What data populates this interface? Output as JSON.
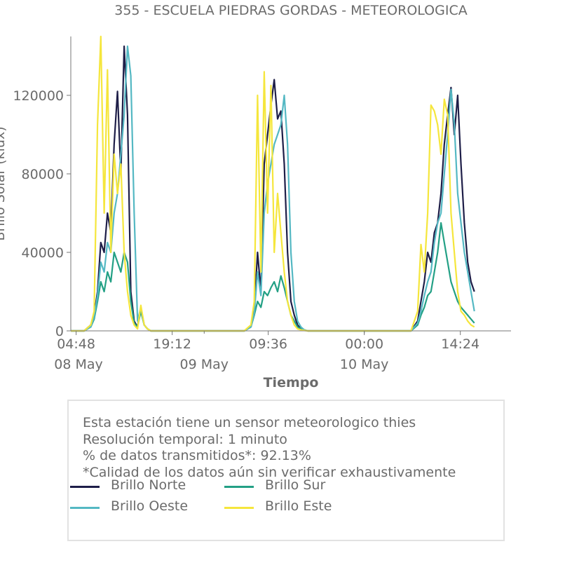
{
  "chart_data": {
    "type": "line",
    "title": "355 - ESCUELA PIEDRAS GORDAS - METEOROLOGICA",
    "xlabel": "Tiempo",
    "ylabel": "Brillo Solar (klux)",
    "ylim": [
      0,
      150000
    ],
    "yticks": [
      0,
      40000,
      80000,
      120000
    ],
    "ytick_labels": [
      "0",
      "40000",
      "80000",
      "120000"
    ],
    "x_range": [
      "2024-05-08 04:00",
      "2024-05-10 22:00"
    ],
    "xticks": [
      {
        "t": "2024-05-08 04:48",
        "label": "04:48",
        "sublabel": "08 May"
      },
      {
        "t": "2024-05-08 19:12",
        "label": "19:12",
        "sublabel": ""
      },
      {
        "t": "2024-05-09 09:36",
        "label": "09:36",
        "sublabel": "09 May"
      },
      {
        "t": "2024-05-10 00:00",
        "label": "00:00",
        "sublabel": "10 May"
      },
      {
        "t": "2024-05-10 14:24",
        "label": "14:24",
        "sublabel": ""
      }
    ],
    "date_labels": [
      {
        "t": "2024-05-08 00:00",
        "label": "08 May"
      },
      {
        "t": "2024-05-09 00:00",
        "label": "09 May"
      },
      {
        "t": "2024-05-10 00:00",
        "label": "10 May"
      }
    ],
    "grid": false,
    "legend_position": "bottom",
    "series": [
      {
        "name": "Brillo Norte",
        "color": "#1e1e48",
        "x": [
          "2024-05-08 04:00",
          "2024-05-08 06:00",
          "2024-05-08 07:00",
          "2024-05-08 07:30",
          "2024-05-08 08:00",
          "2024-05-08 08:30",
          "2024-05-08 09:00",
          "2024-05-08 09:30",
          "2024-05-08 10:00",
          "2024-05-08 10:30",
          "2024-05-08 11:00",
          "2024-05-08 11:30",
          "2024-05-08 12:00",
          "2024-05-08 12:30",
          "2024-05-08 13:00",
          "2024-05-08 13:30",
          "2024-05-08 14:00",
          "2024-05-08 14:30",
          "2024-05-08 15:00",
          "2024-05-08 15:30",
          "2024-05-08 16:00",
          "2024-05-08 17:00",
          "2024-05-08 18:00",
          "2024-05-09 06:00",
          "2024-05-09 07:00",
          "2024-05-09 07:30",
          "2024-05-09 08:00",
          "2024-05-09 08:30",
          "2024-05-09 09:00",
          "2024-05-09 09:30",
          "2024-05-09 10:00",
          "2024-05-09 10:30",
          "2024-05-09 11:00",
          "2024-05-09 11:30",
          "2024-05-09 12:00",
          "2024-05-09 12:30",
          "2024-05-09 13:00",
          "2024-05-09 13:30",
          "2024-05-09 14:00",
          "2024-05-09 14:30",
          "2024-05-09 15:00",
          "2024-05-09 15:30",
          "2024-05-09 16:00",
          "2024-05-09 17:00",
          "2024-05-09 18:00",
          "2024-05-10 07:00",
          "2024-05-10 08:00",
          "2024-05-10 08:30",
          "2024-05-10 09:00",
          "2024-05-10 09:30",
          "2024-05-10 10:00",
          "2024-05-10 10:30",
          "2024-05-10 11:00",
          "2024-05-10 11:30",
          "2024-05-10 12:00",
          "2024-05-10 12:30",
          "2024-05-10 13:00",
          "2024-05-10 13:30",
          "2024-05-10 14:00",
          "2024-05-10 14:30",
          "2024-05-10 15:00",
          "2024-05-10 15:30",
          "2024-05-10 16:00",
          "2024-05-10 16:30"
        ],
        "y": [
          0,
          0,
          3000,
          8000,
          20000,
          45000,
          40000,
          60000,
          50000,
          95000,
          122000,
          80000,
          145000,
          110000,
          20000,
          5000,
          2000,
          12000,
          3000,
          1000,
          0,
          0,
          0,
          0,
          2000,
          10000,
          40000,
          20000,
          85000,
          100000,
          115000,
          128000,
          108000,
          112000,
          85000,
          40000,
          15000,
          8000,
          3000,
          1000,
          500,
          0,
          0,
          0,
          0,
          0,
          5000,
          15000,
          25000,
          40000,
          35000,
          50000,
          55000,
          70000,
          95000,
          110000,
          124000,
          100000,
          120000,
          85000,
          55000,
          35000,
          25000,
          20000
        ]
      },
      {
        "name": "Brillo Sur",
        "color": "#23a085",
        "x": [
          "2024-05-08 04:00",
          "2024-05-08 06:00",
          "2024-05-08 07:00",
          "2024-05-08 07:30",
          "2024-05-08 08:00",
          "2024-05-08 08:30",
          "2024-05-08 09:00",
          "2024-05-08 09:30",
          "2024-05-08 10:00",
          "2024-05-08 10:30",
          "2024-05-08 11:00",
          "2024-05-08 11:30",
          "2024-05-08 12:00",
          "2024-05-08 12:30",
          "2024-05-08 13:00",
          "2024-05-08 13:30",
          "2024-05-08 14:00",
          "2024-05-08 14:30",
          "2024-05-08 15:00",
          "2024-05-08 15:30",
          "2024-05-08 16:00",
          "2024-05-08 17:00",
          "2024-05-08 18:00",
          "2024-05-09 06:00",
          "2024-05-09 07:00",
          "2024-05-09 07:30",
          "2024-05-09 08:00",
          "2024-05-09 08:30",
          "2024-05-09 09:00",
          "2024-05-09 09:30",
          "2024-05-09 10:00",
          "2024-05-09 10:30",
          "2024-05-09 11:00",
          "2024-05-09 11:30",
          "2024-05-09 12:00",
          "2024-05-09 12:30",
          "2024-05-09 13:00",
          "2024-05-09 13:30",
          "2024-05-09 14:00",
          "2024-05-09 14:30",
          "2024-05-09 15:00",
          "2024-05-09 15:30",
          "2024-05-09 16:00",
          "2024-05-09 17:00",
          "2024-05-09 18:00",
          "2024-05-10 07:00",
          "2024-05-10 08:00",
          "2024-05-10 08:30",
          "2024-05-10 09:00",
          "2024-05-10 09:30",
          "2024-05-10 10:00",
          "2024-05-10 10:30",
          "2024-05-10 11:00",
          "2024-05-10 11:30",
          "2024-05-10 12:00",
          "2024-05-10 12:30",
          "2024-05-10 13:00",
          "2024-05-10 13:30",
          "2024-05-10 14:00",
          "2024-05-10 14:30",
          "2024-05-10 15:00",
          "2024-05-10 15:30",
          "2024-05-10 16:00",
          "2024-05-10 16:30"
        ],
        "y": [
          0,
          0,
          2000,
          6000,
          15000,
          25000,
          20000,
          30000,
          25000,
          40000,
          35000,
          30000,
          40000,
          35000,
          15000,
          4000,
          2000,
          10000,
          3000,
          1000,
          0,
          0,
          0,
          0,
          2000,
          8000,
          15000,
          12000,
          20000,
          18000,
          22000,
          25000,
          20000,
          28000,
          22000,
          15000,
          8000,
          5000,
          2000,
          1000,
          500,
          0,
          0,
          0,
          0,
          0,
          3000,
          8000,
          12000,
          18000,
          20000,
          30000,
          40000,
          55000,
          45000,
          35000,
          25000,
          20000,
          15000,
          12000,
          10000,
          8000,
          6000,
          4000
        ]
      },
      {
        "name": "Brillo Oeste",
        "color": "#54b8c3",
        "x": [
          "2024-05-08 04:00",
          "2024-05-08 06:00",
          "2024-05-08 07:00",
          "2024-05-08 07:30",
          "2024-05-08 08:00",
          "2024-05-08 08:30",
          "2024-05-08 09:00",
          "2024-05-08 09:30",
          "2024-05-08 10:00",
          "2024-05-08 10:30",
          "2024-05-08 11:00",
          "2024-05-08 11:30",
          "2024-05-08 12:00",
          "2024-05-08 12:30",
          "2024-05-08 13:00",
          "2024-05-08 13:30",
          "2024-05-08 14:00",
          "2024-05-08 14:30",
          "2024-05-08 15:00",
          "2024-05-08 15:30",
          "2024-05-08 16:00",
          "2024-05-08 17:00",
          "2024-05-08 18:00",
          "2024-05-09 06:00",
          "2024-05-09 07:00",
          "2024-05-09 07:30",
          "2024-05-09 08:00",
          "2024-05-09 08:30",
          "2024-05-09 09:00",
          "2024-05-09 09:30",
          "2024-05-09 10:00",
          "2024-05-09 10:30",
          "2024-05-09 11:00",
          "2024-05-09 11:30",
          "2024-05-09 12:00",
          "2024-05-09 12:30",
          "2024-05-09 13:00",
          "2024-05-09 13:30",
          "2024-05-09 14:00",
          "2024-05-09 14:30",
          "2024-05-09 15:00",
          "2024-05-09 15:30",
          "2024-05-09 16:00",
          "2024-05-09 17:00",
          "2024-05-09 18:00",
          "2024-05-10 07:00",
          "2024-05-10 08:00",
          "2024-05-10 08:30",
          "2024-05-10 09:00",
          "2024-05-10 09:30",
          "2024-05-10 10:00",
          "2024-05-10 10:30",
          "2024-05-10 11:00",
          "2024-05-10 11:30",
          "2024-05-10 12:00",
          "2024-05-10 12:30",
          "2024-05-10 13:00",
          "2024-05-10 13:30",
          "2024-05-10 14:00",
          "2024-05-10 14:30",
          "2024-05-10 15:00",
          "2024-05-10 15:30",
          "2024-05-10 16:00",
          "2024-05-10 16:30"
        ],
        "y": [
          0,
          0,
          2000,
          7000,
          18000,
          35000,
          30000,
          45000,
          40000,
          60000,
          70000,
          90000,
          110000,
          145000,
          130000,
          60000,
          5000,
          12000,
          3000,
          1000,
          0,
          0,
          0,
          0,
          2000,
          9000,
          30000,
          18000,
          60000,
          75000,
          85000,
          95000,
          100000,
          105000,
          120000,
          95000,
          40000,
          15000,
          5000,
          2000,
          500,
          0,
          0,
          0,
          0,
          0,
          4000,
          10000,
          18000,
          25000,
          30000,
          45000,
          55000,
          60000,
          80000,
          100000,
          123000,
          105000,
          70000,
          55000,
          40000,
          30000,
          20000,
          10000
        ]
      },
      {
        "name": "Brillo Este",
        "color": "#f5e63c",
        "x": [
          "2024-05-08 04:00",
          "2024-05-08 06:00",
          "2024-05-08 07:00",
          "2024-05-08 07:30",
          "2024-05-08 08:00",
          "2024-05-08 08:30",
          "2024-05-08 09:00",
          "2024-05-08 09:30",
          "2024-05-08 10:00",
          "2024-05-08 10:30",
          "2024-05-08 11:00",
          "2024-05-08 11:30",
          "2024-05-08 12:00",
          "2024-05-08 12:30",
          "2024-05-08 13:00",
          "2024-05-08 13:30",
          "2024-05-08 14:00",
          "2024-05-08 14:30",
          "2024-05-08 15:00",
          "2024-05-08 15:30",
          "2024-05-08 16:00",
          "2024-05-08 17:00",
          "2024-05-08 18:00",
          "2024-05-09 06:00",
          "2024-05-09 07:00",
          "2024-05-09 07:30",
          "2024-05-09 08:00",
          "2024-05-09 08:30",
          "2024-05-09 09:00",
          "2024-05-09 09:30",
          "2024-05-09 10:00",
          "2024-05-09 10:30",
          "2024-05-09 11:00",
          "2024-05-09 11:30",
          "2024-05-09 12:00",
          "2024-05-09 12:30",
          "2024-05-09 13:00",
          "2024-05-09 13:30",
          "2024-05-09 14:00",
          "2024-05-09 14:30",
          "2024-05-09 15:00",
          "2024-05-09 15:30",
          "2024-05-09 16:00",
          "2024-05-09 17:00",
          "2024-05-09 18:00",
          "2024-05-10 07:00",
          "2024-05-10 08:00",
          "2024-05-10 08:30",
          "2024-05-10 09:00",
          "2024-05-10 09:30",
          "2024-05-10 10:00",
          "2024-05-10 10:30",
          "2024-05-10 11:00",
          "2024-05-10 11:30",
          "2024-05-10 12:00",
          "2024-05-10 12:30",
          "2024-05-10 13:00",
          "2024-05-10 13:30",
          "2024-05-10 14:00",
          "2024-05-10 14:30",
          "2024-05-10 15:00",
          "2024-05-10 15:30",
          "2024-05-10 16:00",
          "2024-05-10 16:30"
        ],
        "y": [
          0,
          0,
          3000,
          10000,
          105000,
          150000,
          60000,
          133000,
          40000,
          90000,
          70000,
          85000,
          40000,
          20000,
          8000,
          3000,
          1000,
          13000,
          3000,
          1000,
          0,
          0,
          0,
          0,
          3000,
          15000,
          120000,
          30000,
          132000,
          60000,
          125000,
          40000,
          70000,
          50000,
          30000,
          15000,
          8000,
          3000,
          1000,
          500,
          200,
          0,
          0,
          0,
          0,
          0,
          10000,
          44000,
          30000,
          60000,
          115000,
          112000,
          105000,
          90000,
          118000,
          110000,
          60000,
          40000,
          20000,
          10000,
          8000,
          5000,
          3000,
          2000
        ]
      }
    ]
  },
  "info": {
    "line1": "Esta estación tiene un sensor meteorologico thies",
    "line2": "Resolución temporal: 1 minuto",
    "line3": "% de datos transmitidos*: 92.13%",
    "line4": "*Calidad de los datos aún sin verificar exhaustivamente"
  }
}
